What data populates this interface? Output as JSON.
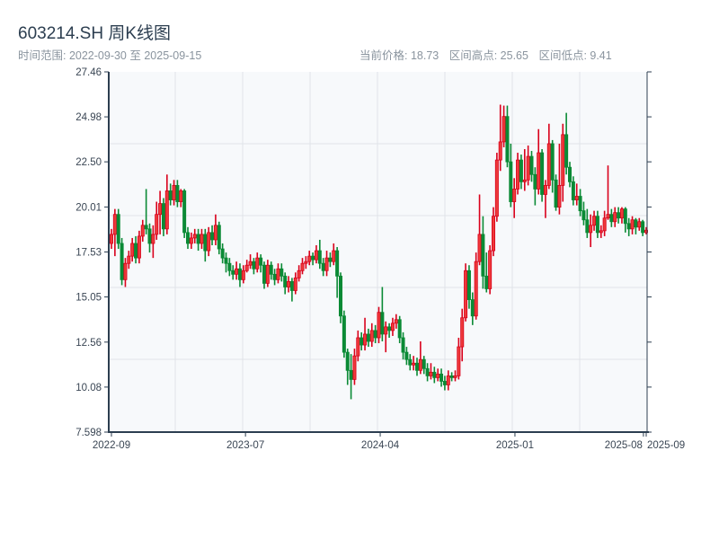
{
  "header": {
    "title": "603214.SH 周K线图",
    "range_label": "时间范围: 2022-09-30 至 2025-09-15",
    "current_price": "当前价格: 18.73",
    "range_high": "区间高点: 25.65",
    "range_low": "区间低点: 9.41"
  },
  "chart_data": {
    "type": "candlestick",
    "title": "603214.SH 周K线图",
    "xlabel": "",
    "ylabel": "",
    "ylim": [
      7.598,
      27.46
    ],
    "y_ticks": [
      "27.46",
      "24.98",
      "22.50",
      "20.01",
      "17.53",
      "15.05",
      "12.56",
      "10.08",
      "7.598"
    ],
    "x_ticks": [
      {
        "label": "2022-09",
        "index": 0
      },
      {
        "label": "2023-07",
        "index": 38.6
      },
      {
        "label": "2024-04",
        "index": 77.4
      },
      {
        "label": "2025-01",
        "index": 116.2
      },
      {
        "label": "2025-08",
        "index": 153.2
      },
      {
        "label": "2025-09",
        "index": 154
      }
    ],
    "colors": {
      "up": "#d9001b",
      "up_fill": "#ee3a3a",
      "down": "#0a8a35",
      "grid": "#e1e4e8",
      "bg": "#f7f9fb",
      "axis": "#2c3e50"
    },
    "candle_format": [
      "open",
      "close",
      "low",
      "high"
    ],
    "candles": [
      [
        18.0,
        18.5,
        17.7,
        18.8
      ],
      [
        18.5,
        19.6,
        17.3,
        19.9
      ],
      [
        19.6,
        18.0,
        17.7,
        19.9
      ],
      [
        18.0,
        16.0,
        15.7,
        18.3
      ],
      [
        16.0,
        16.9,
        15.6,
        17.2
      ],
      [
        16.9,
        17.3,
        16.6,
        17.6
      ],
      [
        17.3,
        18.0,
        17.0,
        18.3
      ],
      [
        18.0,
        17.2,
        16.9,
        18.4
      ],
      [
        17.2,
        18.4,
        16.9,
        18.7
      ],
      [
        18.4,
        19.0,
        18.1,
        19.3
      ],
      [
        19.0,
        18.8,
        18.5,
        21.0
      ],
      [
        18.8,
        18.0,
        17.5,
        19.1
      ],
      [
        18.0,
        18.5,
        17.2,
        19.0
      ],
      [
        18.5,
        19.6,
        18.2,
        20.3
      ],
      [
        19.6,
        20.2,
        18.5,
        20.9
      ],
      [
        20.2,
        18.8,
        18.4,
        20.5
      ],
      [
        18.8,
        20.9,
        18.5,
        21.8
      ],
      [
        20.9,
        20.4,
        20.1,
        21.3
      ],
      [
        20.4,
        21.2,
        20.1,
        21.5
      ],
      [
        21.2,
        20.3,
        20.0,
        21.5
      ],
      [
        20.3,
        20.9,
        20.0,
        21.0
      ],
      [
        20.9,
        18.6,
        18.3,
        21.0
      ],
      [
        18.6,
        18.0,
        17.7,
        18.9
      ],
      [
        18.0,
        18.3,
        17.7,
        18.6
      ],
      [
        18.3,
        18.5,
        18.0,
        18.8
      ],
      [
        18.5,
        18.0,
        17.6,
        18.8
      ],
      [
        18.0,
        18.5,
        17.7,
        18.8
      ],
      [
        18.5,
        17.6,
        17.0,
        18.8
      ],
      [
        17.6,
        18.6,
        17.3,
        18.9
      ],
      [
        18.6,
        18.2,
        17.9,
        19.0
      ],
      [
        18.2,
        19.0,
        17.9,
        19.6
      ],
      [
        19.0,
        17.7,
        17.4,
        19.2
      ],
      [
        17.7,
        17.2,
        16.9,
        18.0
      ],
      [
        17.2,
        16.9,
        16.4,
        17.5
      ],
      [
        16.9,
        16.5,
        16.2,
        17.2
      ],
      [
        16.5,
        16.3,
        16.0,
        16.8
      ],
      [
        16.3,
        16.6,
        16.0,
        17.0
      ],
      [
        16.6,
        16.0,
        15.6,
        16.9
      ],
      [
        16.0,
        16.5,
        15.8,
        16.8
      ],
      [
        16.5,
        16.8,
        16.4,
        17.1
      ],
      [
        16.8,
        17.0,
        16.6,
        17.4
      ],
      [
        17.0,
        16.6,
        16.3,
        17.2
      ],
      [
        16.6,
        17.2,
        16.4,
        17.5
      ],
      [
        17.2,
        16.8,
        16.4,
        17.4
      ],
      [
        16.8,
        15.8,
        15.5,
        17.0
      ],
      [
        15.8,
        16.8,
        15.6,
        17.1
      ],
      [
        16.8,
        16.3,
        16.0,
        17.0
      ],
      [
        16.3,
        16.0,
        15.7,
        16.6
      ],
      [
        16.0,
        16.6,
        15.8,
        16.9
      ],
      [
        16.6,
        16.2,
        15.9,
        16.9
      ],
      [
        16.2,
        15.6,
        15.2,
        16.4
      ],
      [
        15.6,
        15.9,
        15.3,
        16.2
      ],
      [
        15.9,
        15.4,
        14.8,
        16.1
      ],
      [
        15.4,
        16.1,
        15.2,
        16.4
      ],
      [
        16.1,
        16.5,
        15.9,
        16.8
      ],
      [
        16.5,
        16.9,
        16.3,
        17.2
      ],
      [
        16.9,
        17.0,
        16.6,
        17.3
      ],
      [
        17.0,
        17.3,
        16.8,
        17.6
      ],
      [
        17.3,
        17.1,
        16.8,
        17.5
      ],
      [
        17.1,
        17.6,
        16.9,
        17.9
      ],
      [
        17.6,
        16.9,
        16.6,
        18.2
      ],
      [
        16.9,
        16.5,
        16.2,
        17.2
      ],
      [
        16.5,
        17.2,
        16.2,
        17.6
      ],
      [
        17.2,
        17.0,
        16.7,
        17.5
      ],
      [
        17.0,
        17.6,
        16.8,
        18.0
      ],
      [
        17.6,
        16.2,
        15.0,
        17.8
      ],
      [
        16.2,
        14.0,
        13.6,
        16.4
      ],
      [
        14.0,
        12.0,
        11.7,
        14.3
      ],
      [
        12.0,
        11.0,
        10.2,
        12.2
      ],
      [
        11.0,
        10.5,
        9.41,
        11.9
      ],
      [
        10.5,
        11.8,
        10.2,
        12.2
      ],
      [
        11.8,
        12.8,
        11.5,
        13.2
      ],
      [
        12.8,
        12.4,
        12.1,
        13.1
      ],
      [
        12.4,
        13.0,
        12.1,
        13.9
      ],
      [
        13.0,
        12.6,
        12.3,
        13.3
      ],
      [
        12.6,
        13.2,
        12.3,
        13.6
      ],
      [
        13.2,
        12.8,
        12.5,
        13.5
      ],
      [
        12.8,
        14.2,
        12.5,
        14.5
      ],
      [
        14.2,
        13.0,
        12.6,
        15.6
      ],
      [
        13.0,
        13.4,
        12.0,
        13.7
      ],
      [
        13.4,
        13.2,
        12.8,
        13.6
      ],
      [
        13.2,
        13.6,
        12.9,
        13.9
      ],
      [
        13.6,
        13.8,
        13.3,
        14.1
      ],
      [
        13.8,
        12.8,
        12.5,
        14.0
      ],
      [
        12.8,
        12.0,
        11.6,
        13.1
      ],
      [
        12.0,
        11.6,
        11.3,
        12.3
      ],
      [
        11.6,
        11.3,
        11.0,
        11.9
      ],
      [
        11.3,
        11.4,
        11.0,
        11.8
      ],
      [
        11.4,
        11.0,
        10.7,
        11.7
      ],
      [
        11.0,
        11.6,
        10.8,
        12.6
      ],
      [
        11.6,
        11.1,
        10.8,
        11.8
      ],
      [
        11.1,
        10.7,
        10.4,
        11.4
      ],
      [
        10.7,
        10.9,
        10.5,
        11.4
      ],
      [
        10.9,
        10.6,
        10.3,
        11.2
      ],
      [
        10.6,
        10.8,
        10.4,
        11.1
      ],
      [
        10.8,
        10.4,
        10.1,
        11.1
      ],
      [
        10.4,
        10.2,
        9.9,
        10.7
      ],
      [
        10.2,
        10.7,
        9.9,
        11.0
      ],
      [
        10.7,
        10.6,
        10.4,
        10.9
      ],
      [
        10.6,
        10.7,
        10.4,
        11.0
      ],
      [
        10.7,
        12.3,
        10.5,
        12.8
      ],
      [
        12.3,
        13.9,
        11.5,
        14.4
      ],
      [
        13.9,
        16.5,
        13.7,
        16.9
      ],
      [
        16.5,
        14.9,
        14.4,
        16.8
      ],
      [
        14.9,
        14.0,
        13.5,
        15.3
      ],
      [
        14.0,
        17.0,
        13.8,
        17.5
      ],
      [
        17.0,
        18.5,
        16.8,
        20.7
      ],
      [
        18.5,
        16.2,
        15.5,
        19.5
      ],
      [
        16.2,
        15.5,
        15.3,
        17.5
      ],
      [
        15.5,
        17.6,
        15.2,
        17.9
      ],
      [
        17.6,
        19.5,
        17.3,
        20.0
      ],
      [
        19.5,
        22.6,
        19.2,
        23.0
      ],
      [
        22.6,
        23.6,
        22.0,
        25.65
      ],
      [
        23.6,
        25.0,
        23.3,
        25.6
      ],
      [
        25.0,
        22.5,
        22.2,
        25.6
      ],
      [
        22.5,
        20.3,
        20.0,
        23.5
      ],
      [
        20.3,
        21.0,
        19.4,
        21.6
      ],
      [
        21.0,
        22.6,
        20.7,
        23.0
      ],
      [
        22.6,
        21.4,
        21.0,
        22.9
      ],
      [
        21.4,
        21.5,
        20.9,
        23.2
      ],
      [
        21.5,
        22.8,
        21.2,
        23.4
      ],
      [
        22.8,
        21.8,
        21.4,
        23.1
      ],
      [
        21.8,
        21.0,
        20.1,
        22.2
      ],
      [
        21.0,
        23.0,
        20.7,
        24.3
      ],
      [
        23.0,
        20.7,
        20.3,
        23.2
      ],
      [
        20.7,
        21.2,
        19.4,
        21.5
      ],
      [
        21.2,
        23.5,
        21.0,
        24.6
      ],
      [
        23.5,
        21.5,
        20.8,
        23.7
      ],
      [
        21.5,
        20.0,
        19.8,
        21.8
      ],
      [
        20.0,
        21.2,
        19.6,
        23.5
      ],
      [
        21.2,
        24.0,
        20.3,
        24.6
      ],
      [
        24.0,
        22.2,
        21.8,
        25.2
      ],
      [
        22.2,
        21.4,
        21.1,
        22.5
      ],
      [
        21.4,
        20.4,
        20.1,
        21.7
      ],
      [
        20.4,
        20.6,
        20.1,
        21.3
      ],
      [
        20.6,
        19.8,
        19.5,
        21.0
      ],
      [
        19.8,
        19.3,
        19.0,
        20.3
      ],
      [
        19.3,
        18.6,
        18.3,
        19.9
      ],
      [
        18.6,
        19.0,
        17.8,
        19.6
      ],
      [
        19.0,
        19.5,
        18.7,
        19.8
      ],
      [
        19.5,
        18.6,
        18.3,
        19.8
      ],
      [
        18.6,
        18.7,
        18.3,
        19.0
      ],
      [
        18.7,
        19.4,
        18.4,
        19.8
      ],
      [
        19.4,
        19.6,
        19.3,
        22.3
      ],
      [
        19.6,
        19.2,
        18.9,
        19.9
      ],
      [
        19.2,
        19.7,
        18.9,
        20.0
      ],
      [
        19.7,
        19.4,
        19.1,
        20.0
      ],
      [
        19.4,
        19.9,
        19.1,
        20.0
      ],
      [
        19.9,
        19.1,
        18.6,
        20.0
      ],
      [
        19.1,
        18.8,
        18.4,
        19.4
      ],
      [
        18.8,
        19.3,
        18.5,
        19.5
      ],
      [
        19.3,
        18.9,
        18.5,
        19.4
      ],
      [
        18.9,
        19.2,
        18.7,
        19.4
      ],
      [
        19.2,
        18.6,
        18.4,
        19.3
      ],
      [
        18.6,
        18.73,
        18.5,
        18.9
      ]
    ]
  }
}
